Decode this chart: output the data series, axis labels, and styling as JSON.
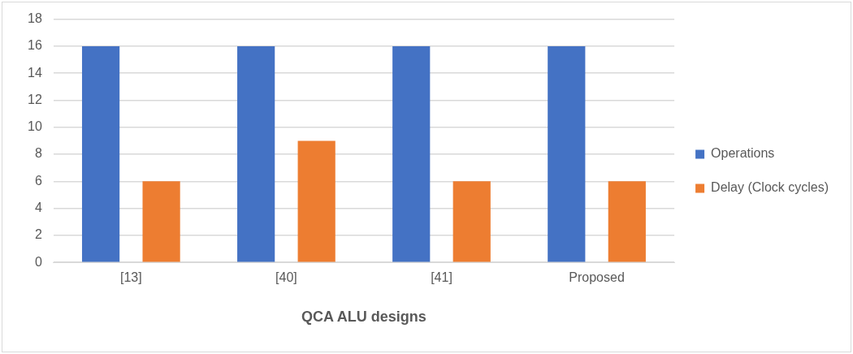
{
  "chart_data": {
    "type": "bar",
    "xlabel": "QCA ALU designs",
    "categories": [
      "[13]",
      "[40]",
      "[41]",
      "Proposed"
    ],
    "series": [
      {
        "name": "Operations",
        "color": "#4472c4",
        "values": [
          16,
          16,
          16,
          16
        ]
      },
      {
        "name": "Delay (Clock cycles)",
        "color": "#ed7d31",
        "values": [
          6,
          9,
          6,
          6
        ]
      }
    ],
    "ylim": [
      0,
      18
    ],
    "yticks": [
      0,
      2,
      4,
      6,
      8,
      10,
      12,
      14,
      16,
      18
    ],
    "grid": "y",
    "legend": "right"
  }
}
